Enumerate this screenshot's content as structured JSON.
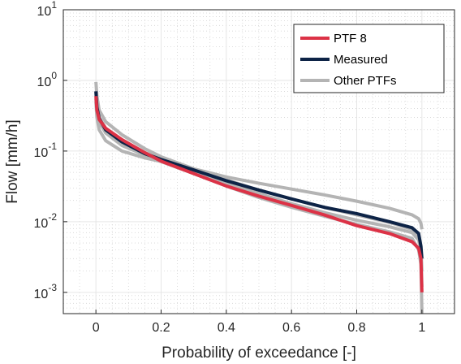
{
  "chart_data": {
    "type": "line",
    "xlabel": "Probability of exceedance [-]",
    "ylabel": "Flow [mm/h]",
    "xlim": [
      -0.1,
      1.1
    ],
    "ylim": [
      0.0005,
      10
    ],
    "yscale": "log",
    "grid": "on",
    "minor_grid": "on",
    "legend_position": "top-right",
    "x_ticks": [
      {
        "value": 0,
        "label": "0"
      },
      {
        "value": 0.2,
        "label": "0.2"
      },
      {
        "value": 0.4,
        "label": "0.4"
      },
      {
        "value": 0.6,
        "label": "0.6"
      },
      {
        "value": 0.8,
        "label": "0.8"
      },
      {
        "value": 1,
        "label": "1"
      }
    ],
    "y_ticks": [
      {
        "value": 10,
        "base": "10",
        "exp": "1"
      },
      {
        "value": 1,
        "base": "10",
        "exp": "0"
      },
      {
        "value": 0.1,
        "base": "10",
        "exp": "-1"
      },
      {
        "value": 0.01,
        "base": "10",
        "exp": "-2"
      },
      {
        "value": 0.001,
        "base": "10",
        "exp": "-3"
      }
    ],
    "series": [
      {
        "name": "Other PTFs",
        "color": "#b4b4b4",
        "legend": true,
        "x": [
          0,
          0.003,
          0.01,
          0.03,
          0.08,
          0.15,
          0.2,
          0.3,
          0.4,
          0.5,
          0.6,
          0.7,
          0.8,
          0.9,
          0.97,
          0.99,
          0.997,
          1.0
        ],
        "y": [
          0.95,
          0.6,
          0.38,
          0.26,
          0.17,
          0.108,
          0.083,
          0.056,
          0.043,
          0.035,
          0.029,
          0.024,
          0.0195,
          0.0155,
          0.0125,
          0.011,
          0.0095,
          0.0078
        ]
      },
      {
        "name": "",
        "color": "#b4b4b4",
        "legend": false,
        "x": [
          0,
          0.003,
          0.01,
          0.03,
          0.08,
          0.15,
          0.2,
          0.3,
          0.4,
          0.5,
          0.6,
          0.7,
          0.8,
          0.9,
          0.97,
          0.99,
          0.997,
          1.0
        ],
        "y": [
          0.5,
          0.3,
          0.2,
          0.14,
          0.1,
          0.08,
          0.071,
          0.048,
          0.032,
          0.022,
          0.016,
          0.012,
          0.0092,
          0.0072,
          0.0058,
          0.004,
          0.0025,
          0.0005
        ]
      },
      {
        "name": "",
        "color": "#b4b4b4",
        "legend": false,
        "x": [
          0,
          0.003,
          0.01,
          0.03,
          0.08,
          0.15,
          0.2,
          0.3,
          0.4,
          0.5,
          0.6,
          0.7,
          0.8,
          0.9,
          0.97,
          0.99,
          0.997,
          1.0
        ],
        "y": [
          0.55,
          0.35,
          0.26,
          0.18,
          0.12,
          0.088,
          0.076,
          0.054,
          0.039,
          0.028,
          0.021,
          0.016,
          0.0125,
          0.0098,
          0.0078,
          0.0062,
          0.0045,
          0.002
        ]
      },
      {
        "name": "",
        "color": "#b4b4b4",
        "legend": false,
        "x": [
          0,
          0.003,
          0.01,
          0.03,
          0.08,
          0.15,
          0.2,
          0.3,
          0.4,
          0.5,
          0.6,
          0.7,
          0.8,
          0.9,
          0.97,
          0.99,
          0.997,
          1.0
        ],
        "y": [
          0.7,
          0.42,
          0.3,
          0.21,
          0.14,
          0.095,
          0.078,
          0.052,
          0.035,
          0.025,
          0.018,
          0.0135,
          0.0105,
          0.0085,
          0.007,
          0.0055,
          0.004,
          0.0012
        ]
      },
      {
        "name": "Measured",
        "color": "#0d2346",
        "legend": true,
        "x": [
          0,
          0.003,
          0.01,
          0.03,
          0.08,
          0.15,
          0.2,
          0.3,
          0.4,
          0.5,
          0.6,
          0.7,
          0.8,
          0.9,
          0.97,
          0.99,
          0.997,
          1.0
        ],
        "y": [
          0.7,
          0.42,
          0.29,
          0.2,
          0.135,
          0.092,
          0.076,
          0.054,
          0.038,
          0.028,
          0.021,
          0.016,
          0.013,
          0.01,
          0.0082,
          0.0068,
          0.0045,
          0.003
        ]
      },
      {
        "name": "PTF 8",
        "color": "#dc3246",
        "legend": true,
        "x": [
          0,
          0.003,
          0.01,
          0.03,
          0.08,
          0.15,
          0.2,
          0.3,
          0.4,
          0.5,
          0.6,
          0.7,
          0.8,
          0.9,
          0.97,
          0.99,
          0.997,
          1.0
        ],
        "y": [
          0.6,
          0.38,
          0.28,
          0.21,
          0.145,
          0.095,
          0.072,
          0.048,
          0.032,
          0.023,
          0.017,
          0.0125,
          0.0088,
          0.0068,
          0.0052,
          0.0042,
          0.003,
          0.001
        ]
      }
    ]
  }
}
